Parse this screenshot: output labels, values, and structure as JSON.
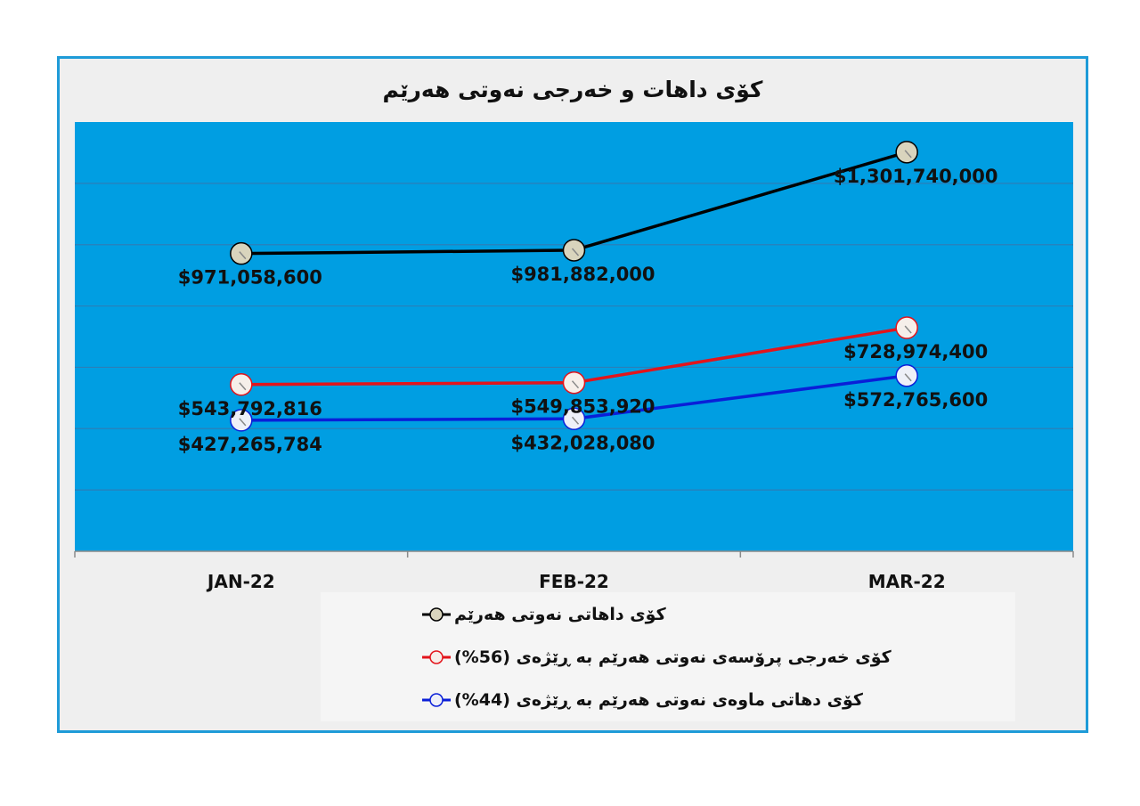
{
  "chart_data": {
    "type": "line",
    "title": "كۆی داهات و خەرجی نەوتی هەرێم",
    "categories": [
      "JAN-22",
      "FEB-22",
      "MAR-22"
    ],
    "ylim": [
      0,
      1400000000
    ],
    "grid": true,
    "legend_position": "bottom",
    "series": [
      {
        "name": "كۆی داهاتی نەوتی هەرێم",
        "values": [
          971058600,
          981882000,
          1301740000
        ],
        "labels": [
          "$971,058,600",
          "$981,882,000",
          "$1,301,740,000"
        ],
        "color": "#000000",
        "marker_fill": "#d9d4bd"
      },
      {
        "name": "كۆی خەرجی پرۆسەی نەوتی هەرێم بە ڕێژەی (56%)",
        "values": [
          543792816,
          549853920,
          728974400
        ],
        "labels": [
          "$543,792,816",
          "$549,853,920",
          "$728,974,400"
        ],
        "color": "#e3141b",
        "marker_fill": "#f6efea"
      },
      {
        "name": "كۆی دهاتی ماوەی نەوتی هەرێم بە ڕێژەی (44%)",
        "values": [
          427265784,
          432028080,
          572765600
        ],
        "labels": [
          "$427,265,784",
          "$432,028,080",
          "$572,765,600"
        ],
        "color": "#0a1fd8",
        "marker_fill": "#eef0f8"
      }
    ]
  },
  "colors": {
    "frame": "#1e9bd8",
    "plot_background": "#009ee2",
    "gridline": "#2b7fb8"
  }
}
